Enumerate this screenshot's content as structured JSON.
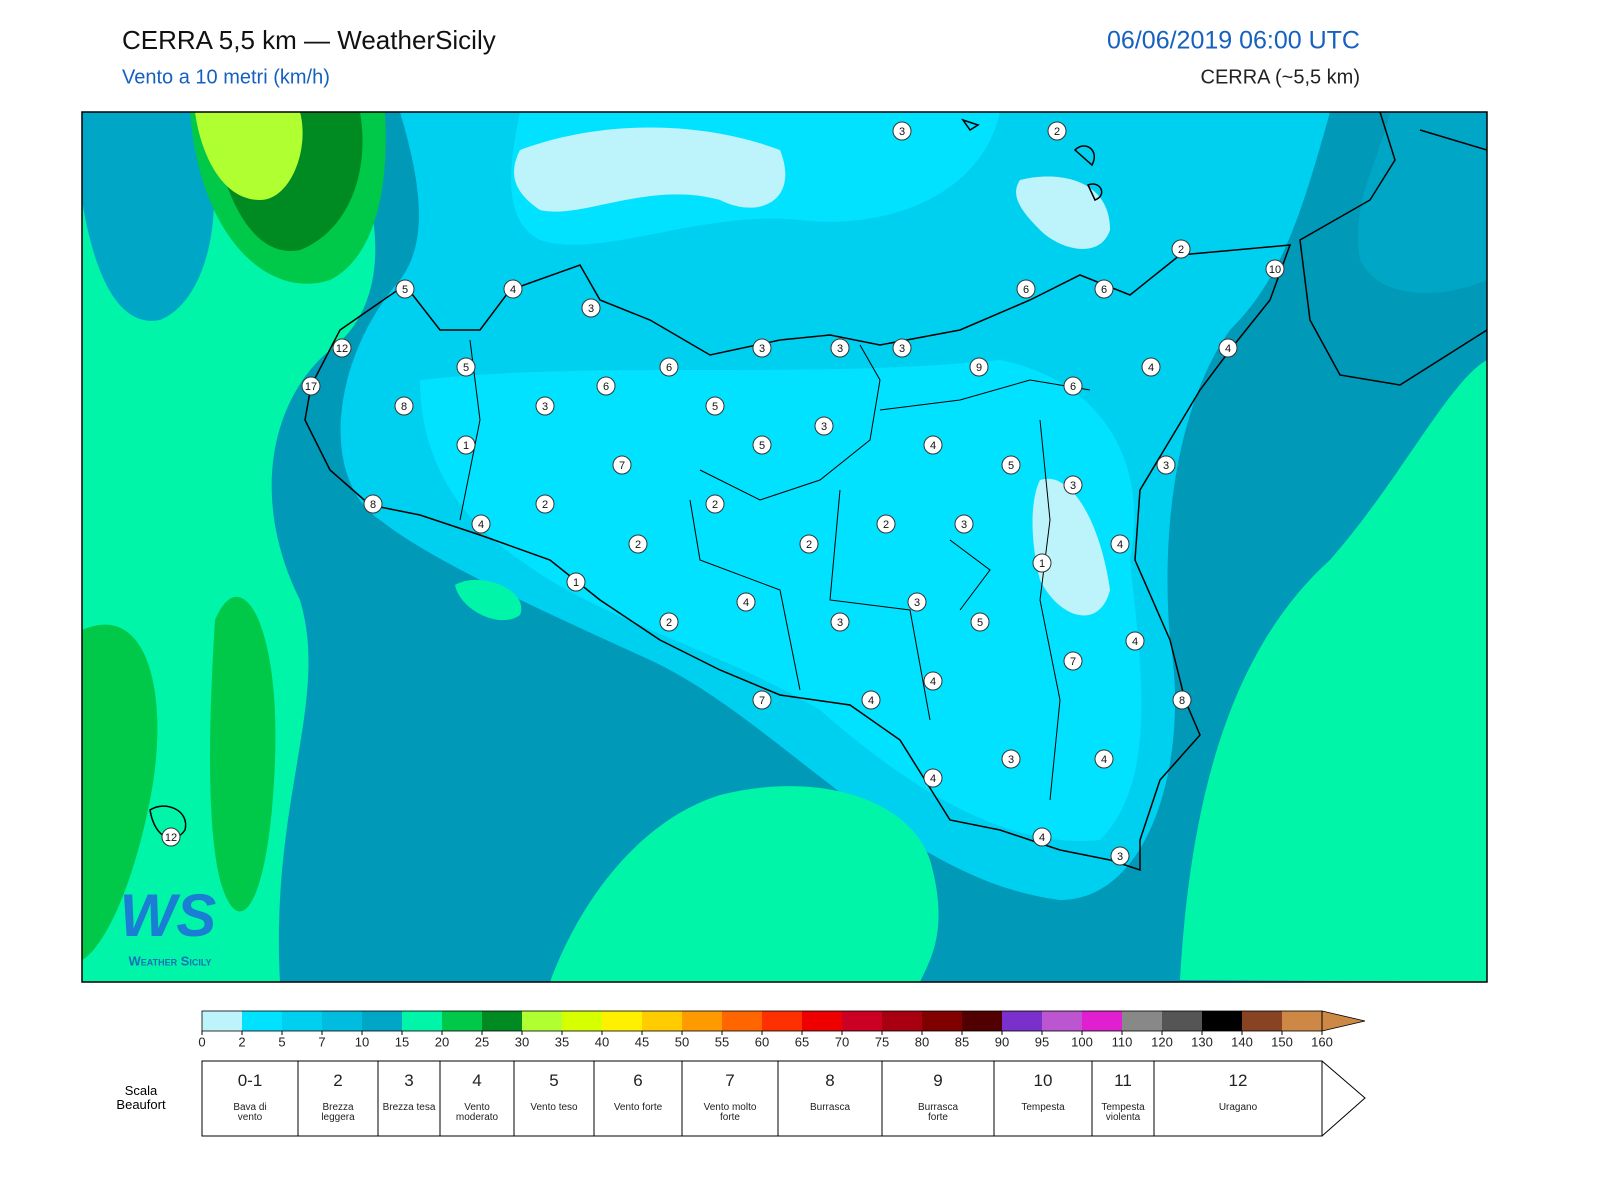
{
  "header": {
    "title": "CERRA 5,5 km — WeatherSicily",
    "subtitle": "Vento a 10 metri (km/h)",
    "datetime": "06/06/2019 06:00 UTC",
    "model": "CERRA (~5,5 km)"
  },
  "map": {
    "stations": [
      3,
      2,
      2,
      10,
      5,
      4,
      3,
      6,
      6,
      12,
      3,
      3,
      3,
      4,
      5,
      6,
      9,
      4,
      17,
      6,
      6,
      8,
      3,
      5,
      3,
      1,
      5,
      4,
      7,
      5,
      3,
      3,
      8,
      2,
      2,
      4,
      2,
      3,
      2,
      2,
      4,
      1,
      1,
      4,
      3,
      2,
      3,
      5,
      4,
      7,
      4,
      7,
      4,
      8,
      3,
      4,
      4,
      12,
      4,
      3
    ]
  },
  "logo": {
    "mark": "WS",
    "text": "Weather Sicily"
  },
  "colorbar": {
    "ticks": [
      0,
      2,
      5,
      7,
      10,
      15,
      20,
      25,
      30,
      35,
      40,
      45,
      50,
      55,
      60,
      65,
      70,
      75,
      80,
      85,
      90,
      95,
      100,
      110,
      120,
      130,
      140,
      150,
      160
    ],
    "colors": [
      "#bdf3fb",
      "#00e2ff",
      "#00d0f0",
      "#00bde0",
      "#00a6c6",
      "#00f5a8",
      "#00c848",
      "#008a22",
      "#b0ff30",
      "#d6ff00",
      "#fff000",
      "#ffcc00",
      "#ff9a00",
      "#ff6600",
      "#ff3000",
      "#ee0000",
      "#cc0022",
      "#a80010",
      "#800000",
      "#500000",
      "#7a30cc",
      "#bb55d0",
      "#e020d0",
      "#888888",
      "#555555",
      "#000000",
      "#884422",
      "#cc8844"
    ],
    "extend_color": "#cc8844"
  },
  "beaufort": {
    "label": "Scala Beaufort",
    "levels": [
      {
        "force": "0-1",
        "name": "Bava di vento"
      },
      {
        "force": 2,
        "name": "Brezza leggera"
      },
      {
        "force": 3,
        "name": "Brezza tesa"
      },
      {
        "force": 4,
        "name": "Vento moderato"
      },
      {
        "force": 5,
        "name": "Vento teso"
      },
      {
        "force": 6,
        "name": "Vento forte"
      },
      {
        "force": 7,
        "name": "Vento molto forte"
      },
      {
        "force": 8,
        "name": "Burrasca"
      },
      {
        "force": 9,
        "name": "Burrasca forte"
      },
      {
        "force": 10,
        "name": "Tempesta"
      },
      {
        "force": 11,
        "name": "Tempesta violenta"
      },
      {
        "force": 12,
        "name": "Uragano"
      }
    ]
  }
}
